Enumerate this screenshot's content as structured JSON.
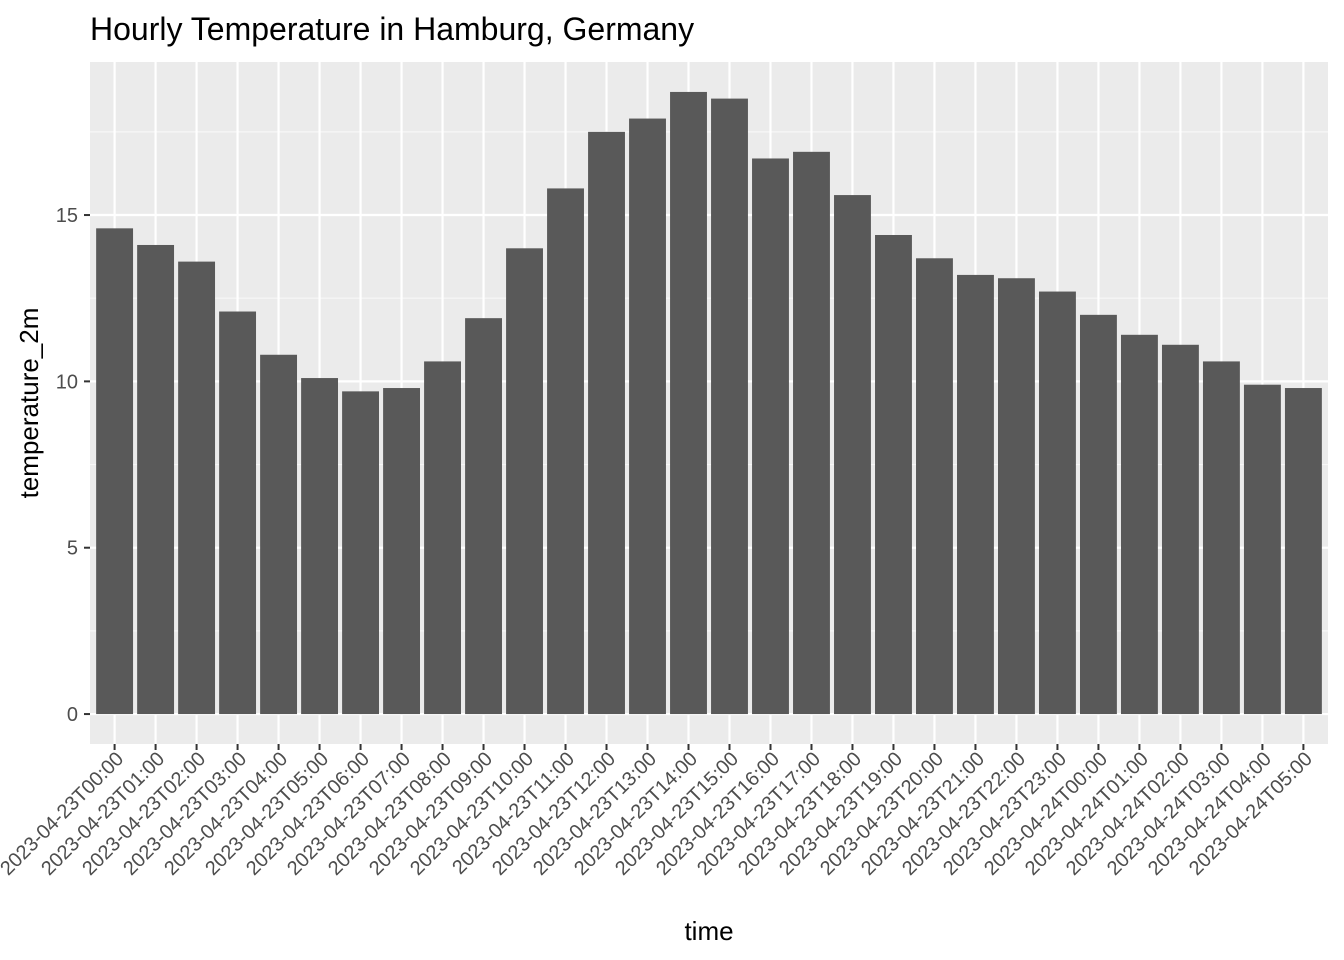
{
  "chart_data": {
    "type": "bar",
    "title": "Hourly Temperature in Hamburg, Germany",
    "xlabel": "time",
    "ylabel": "temperature_2m",
    "categories": [
      "2023-04-23T00:00",
      "2023-04-23T01:00",
      "2023-04-23T02:00",
      "2023-04-23T03:00",
      "2023-04-23T04:00",
      "2023-04-23T05:00",
      "2023-04-23T06:00",
      "2023-04-23T07:00",
      "2023-04-23T08:00",
      "2023-04-23T09:00",
      "2023-04-23T10:00",
      "2023-04-23T11:00",
      "2023-04-23T12:00",
      "2023-04-23T13:00",
      "2023-04-23T14:00",
      "2023-04-23T15:00",
      "2023-04-23T16:00",
      "2023-04-23T17:00",
      "2023-04-23T18:00",
      "2023-04-23T19:00",
      "2023-04-23T20:00",
      "2023-04-23T21:00",
      "2023-04-23T22:00",
      "2023-04-23T23:00",
      "2023-04-24T00:00",
      "2023-04-24T01:00",
      "2023-04-24T02:00",
      "2023-04-24T03:00",
      "2023-04-24T04:00",
      "2023-04-24T05:00"
    ],
    "values": [
      14.6,
      14.1,
      13.6,
      12.1,
      10.8,
      10.1,
      9.7,
      9.8,
      10.6,
      11.9,
      14.0,
      15.8,
      17.5,
      17.9,
      18.7,
      18.5,
      16.7,
      16.9,
      15.6,
      14.4,
      13.7,
      13.2,
      13.1,
      12.7,
      12.0,
      11.4,
      11.1,
      10.6,
      9.9,
      9.8
    ],
    "ylim": [
      -0.9,
      19.6
    ],
    "yticks": [
      0,
      5,
      10,
      15
    ],
    "ytick_labels": [
      "0",
      "5",
      "10",
      "15"
    ],
    "grid": true,
    "legend": "none",
    "colors": {
      "bar": "#595959",
      "panel": "#ebebeb",
      "grid_major": "#ffffff",
      "grid_minor": "#f7f7f7",
      "tick_label": "#4d4d4d",
      "tick_mark": "#333333",
      "text": "#000000"
    }
  }
}
